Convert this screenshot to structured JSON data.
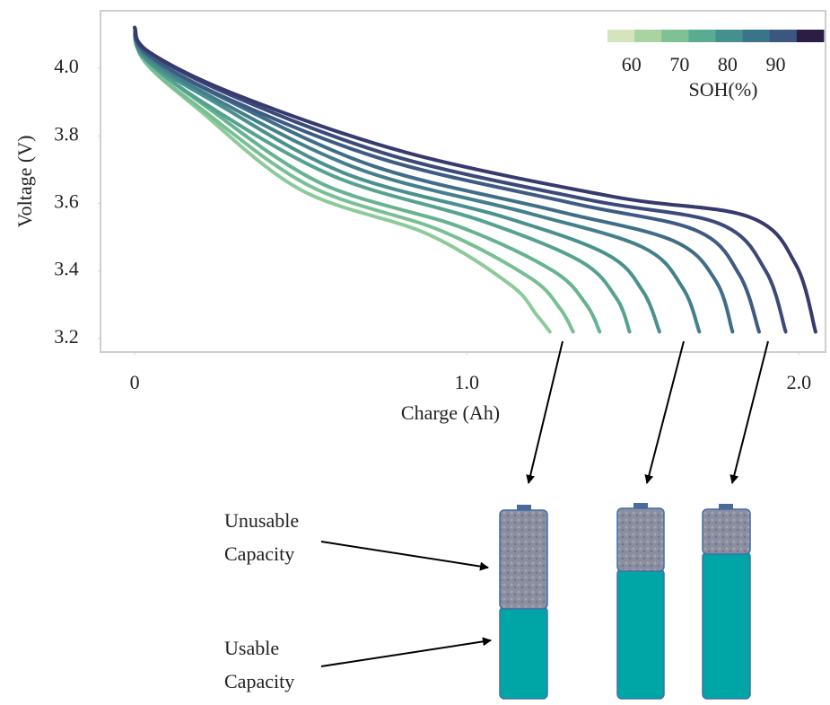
{
  "chart_data": {
    "type": "line",
    "xlabel": "Charge (Ah)",
    "ylabel": "Voltage (V)",
    "xlim": [
      -0.103,
      2.08
    ],
    "ylim": [
      3.16,
      4.17
    ],
    "xticks": [
      0,
      {
        "value": 1,
        "label": "1.0"
      },
      {
        "value": 2,
        "label": "2.0"
      }
    ],
    "yticks": [
      {
        "value": 3.2,
        "label": "3.2"
      },
      {
        "value": 3.4,
        "label": "3.4"
      },
      {
        "value": 3.6,
        "label": "3.6"
      },
      {
        "value": 3.8,
        "label": "3.8"
      },
      {
        "value": 4,
        "label": "4.0"
      }
    ],
    "series": [
      {
        "color": "#8dca99",
        "x": [
          0,
          0.03,
          0.19,
          0.5,
          0.88,
          1.13,
          1.21,
          1.25
        ],
        "values": [
          4.12,
          4.02,
          3.88,
          3.64,
          3.51,
          3.36,
          3.27,
          3.22
        ]
      },
      {
        "color": "#79bf94",
        "x": [
          0,
          0.03,
          0.2,
          0.53,
          0.92,
          1.19,
          1.28,
          1.32
        ],
        "values": [
          4.12,
          4.02,
          3.88,
          3.65,
          3.52,
          3.38,
          3.29,
          3.22
        ]
      },
      {
        "color": "#66b291",
        "x": [
          0,
          0.03,
          0.21,
          0.56,
          0.98,
          1.26,
          1.36,
          1.4
        ],
        "values": [
          4.12,
          4.03,
          3.89,
          3.66,
          3.53,
          3.4,
          3.3,
          3.22
        ]
      },
      {
        "color": "#56a290",
        "x": [
          0,
          0.03,
          0.22,
          0.6,
          1.04,
          1.34,
          1.45,
          1.49
        ],
        "values": [
          4.12,
          4.03,
          3.89,
          3.68,
          3.55,
          3.43,
          3.32,
          3.22
        ]
      },
      {
        "color": "#4a918e",
        "x": [
          0,
          0.03,
          0.24,
          0.63,
          1.11,
          1.42,
          1.53,
          1.58
        ],
        "values": [
          4.12,
          4.03,
          3.9,
          3.69,
          3.56,
          3.45,
          3.34,
          3.22
        ]
      },
      {
        "color": "#43808b",
        "x": [
          0,
          0.03,
          0.26,
          0.68,
          1.19,
          1.53,
          1.65,
          1.7
        ],
        "values": [
          4.12,
          4.04,
          3.9,
          3.7,
          3.57,
          3.47,
          3.35,
          3.22
        ]
      },
      {
        "color": "#3f6e88",
        "x": [
          0,
          0.04,
          0.27,
          0.72,
          1.26,
          1.62,
          1.75,
          1.8
        ],
        "values": [
          4.12,
          4.04,
          3.91,
          3.71,
          3.58,
          3.49,
          3.37,
          3.22
        ]
      },
      {
        "color": "#3d5b83",
        "x": [
          0,
          0.04,
          0.28,
          0.75,
          1.32,
          1.69,
          1.82,
          1.88
        ],
        "values": [
          4.12,
          4.04,
          3.91,
          3.73,
          3.6,
          3.52,
          3.39,
          3.22
        ]
      },
      {
        "color": "#3c4a7a",
        "x": [
          0,
          0.04,
          0.29,
          0.78,
          1.37,
          1.76,
          1.9,
          1.96
        ],
        "values": [
          4.12,
          4.05,
          3.92,
          3.74,
          3.61,
          3.54,
          3.4,
          3.22
        ]
      },
      {
        "color": "#363a6c",
        "x": [
          0,
          0.04,
          0.31,
          0.82,
          1.44,
          1.85,
          1.99,
          2.05
        ],
        "values": [
          4.12,
          4.05,
          3.92,
          3.75,
          3.62,
          3.56,
          3.42,
          3.22
        ]
      }
    ],
    "colorbar": {
      "label": "SOH(%)",
      "lim": [
        55,
        100
      ],
      "ticks": [
        60,
        70,
        80,
        90
      ],
      "colors": [
        "#d4e4bc",
        "#a9d3a0",
        "#7dc194",
        "#59ab92",
        "#45908e",
        "#3a7488",
        "#3b5680",
        "#2b1d44"
      ]
    },
    "annotations": [
      [
        "Unusable",
        "Capacity"
      ],
      [
        "Usable",
        "Capacity"
      ]
    ]
  }
}
